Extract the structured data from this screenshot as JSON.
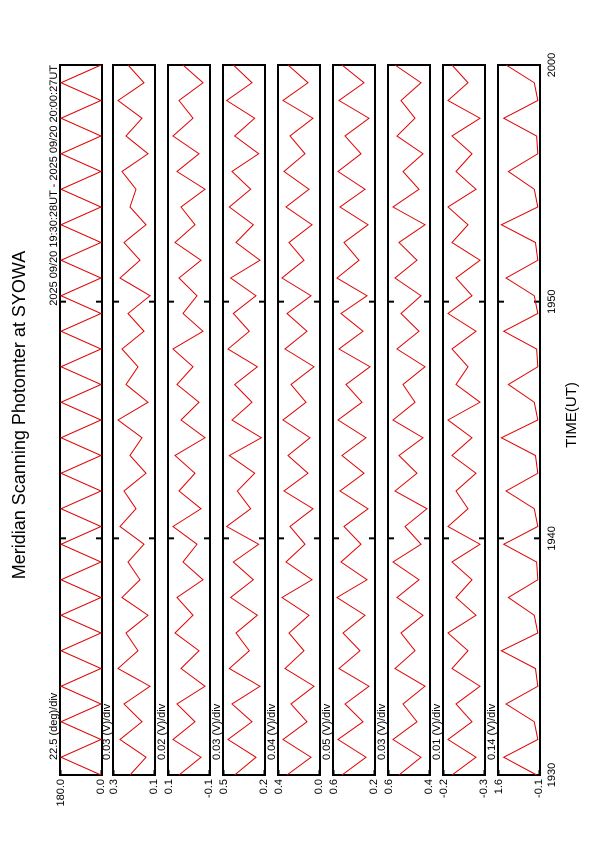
{
  "chart_data": {
    "type": "line",
    "title": "Meridian Scanning Photomter at SYOWA",
    "subtitle": "2025 09/20 19:30:28UT - 2025 09/20 20:00:27UT",
    "xlabel": "TIME(UT)",
    "xlim": [
      1170,
      1200
    ],
    "xticks": [
      {
        "value": 1170,
        "label": "1930"
      },
      {
        "value": 1180,
        "label": "1940"
      },
      {
        "value": 1190,
        "label": "1950"
      },
      {
        "value": 1200,
        "label": "2000"
      }
    ],
    "x": [
      1170,
      1170.75,
      1171.5,
      1172.25,
      1173,
      1173.75,
      1174.5,
      1175.25,
      1176,
      1176.75,
      1177.5,
      1178.25,
      1179,
      1179.75,
      1180.5,
      1181.25,
      1182,
      1182.75,
      1183.5,
      1184.25,
      1185,
      1185.75,
      1186.5,
      1187.25,
      1188,
      1188.75,
      1189.5,
      1190.25,
      1191,
      1191.75,
      1192.5,
      1193.25,
      1194,
      1194.75,
      1195.5,
      1196.25,
      1197,
      1197.75,
      1198.5,
      1199.25,
      1200
    ],
    "series": [
      {
        "scale_label": "22.5 (deg)/div",
        "color": "#e00000",
        "ylim": [
          0,
          180
        ],
        "yticks": [
          {
            "value": 0,
            "label": "0.0"
          },
          {
            "value": 180,
            "label": "180.0"
          }
        ],
        "values": [
          0,
          180,
          0,
          180,
          0,
          180,
          0,
          180,
          0,
          180,
          0,
          180,
          0,
          180,
          0,
          180,
          0,
          180,
          0,
          180,
          0,
          180,
          0,
          180,
          0,
          180,
          0,
          180,
          0,
          180,
          0,
          180,
          0,
          180,
          0,
          180,
          0,
          180,
          0,
          180,
          0
        ]
      },
      {
        "scale_label": "0.03 (V)/div",
        "color": "#e00000",
        "ylim": [
          0.1,
          0.3
        ],
        "yticks": [
          0.1,
          0.3
        ],
        "values": [
          0.22,
          0.14,
          0.27,
          0.16,
          0.25,
          0.12,
          0.28,
          0.18,
          0.24,
          0.13,
          0.26,
          0.17,
          0.23,
          0.15,
          0.27,
          0.19,
          0.25,
          0.14,
          0.22,
          0.16,
          0.28,
          0.13,
          0.24,
          0.18,
          0.26,
          0.15,
          0.23,
          0.12,
          0.27,
          0.17,
          0.25,
          0.14,
          0.22,
          0.19,
          0.26,
          0.13,
          0.24,
          0.16,
          0.28,
          0.15,
          0.23
        ]
      },
      {
        "scale_label": "0.02 (V)/div",
        "color": "#e00000",
        "ylim": [
          -0.1,
          0.1
        ],
        "yticks": [
          -0.1,
          0.1
        ],
        "values": [
          0.05,
          -0.06,
          0.08,
          -0.03,
          0.06,
          -0.08,
          0.04,
          -0.05,
          0.07,
          -0.02,
          0.06,
          -0.07,
          0.03,
          -0.04,
          0.08,
          -0.06,
          0.05,
          -0.03,
          0.07,
          -0.08,
          0.04,
          -0.05,
          0.06,
          -0.02,
          0.08,
          -0.07,
          0.03,
          -0.04,
          0.05,
          -0.06,
          0.07,
          -0.03,
          0.04,
          -0.08,
          0.06,
          -0.05,
          0.08,
          -0.02,
          0.05,
          -0.07,
          0.03
        ]
      },
      {
        "scale_label": "0.03 (V)/div",
        "color": "#e00000",
        "ylim": [
          0.2,
          0.5
        ],
        "yticks": [
          0.2,
          0.5
        ],
        "values": [
          0.42,
          0.26,
          0.47,
          0.29,
          0.44,
          0.23,
          0.46,
          0.31,
          0.41,
          0.25,
          0.45,
          0.28,
          0.43,
          0.24,
          0.48,
          0.3,
          0.4,
          0.27,
          0.46,
          0.22,
          0.44,
          0.29,
          0.42,
          0.25,
          0.47,
          0.31,
          0.43,
          0.26,
          0.45,
          0.23,
          0.41,
          0.28,
          0.46,
          0.3,
          0.44,
          0.24,
          0.42,
          0.27,
          0.48,
          0.29,
          0.43
        ]
      },
      {
        "scale_label": "0.04 (V)/div",
        "color": "#e00000",
        "ylim": [
          0,
          0.4
        ],
        "yticks": [
          {
            "value": 0,
            "label": "0.0"
          },
          0.4
        ],
        "values": [
          0.32,
          0.08,
          0.36,
          0.12,
          0.28,
          0.05,
          0.34,
          0.15,
          0.3,
          0.1,
          0.37,
          0.07,
          0.33,
          0.14,
          0.29,
          0.06,
          0.35,
          0.11,
          0.31,
          0.09,
          0.36,
          0.13,
          0.28,
          0.05,
          0.34,
          0.12,
          0.32,
          0.08,
          0.37,
          0.15,
          0.3,
          0.07,
          0.33,
          0.1,
          0.35,
          0.14,
          0.29,
          0.06,
          0.36,
          0.11,
          0.31
        ]
      },
      {
        "scale_label": "0.05 (V)/div",
        "color": "#e00000",
        "ylim": [
          0.2,
          0.6
        ],
        "yticks": [
          0.2,
          0.6
        ],
        "values": [
          0.52,
          0.28,
          0.56,
          0.31,
          0.49,
          0.25,
          0.55,
          0.34,
          0.51,
          0.29,
          0.57,
          0.27,
          0.53,
          0.33,
          0.5,
          0.26,
          0.54,
          0.3,
          0.52,
          0.28,
          0.56,
          0.32,
          0.48,
          0.24,
          0.55,
          0.31,
          0.53,
          0.27,
          0.57,
          0.35,
          0.5,
          0.26,
          0.54,
          0.29,
          0.56,
          0.33,
          0.49,
          0.25,
          0.55,
          0.3,
          0.52
        ]
      },
      {
        "scale_label": "0.03 (V)/div",
        "color": "#e00000",
        "ylim": [
          0.4,
          0.6
        ],
        "yticks": [
          0.4,
          0.6
        ],
        "values": [
          0.55,
          0.44,
          0.58,
          0.46,
          0.53,
          0.42,
          0.57,
          0.47,
          0.54,
          0.43,
          0.56,
          0.45,
          0.58,
          0.44,
          0.52,
          0.41,
          0.57,
          0.46,
          0.55,
          0.43,
          0.58,
          0.47,
          0.53,
          0.42,
          0.56,
          0.45,
          0.54,
          0.44,
          0.57,
          0.46,
          0.55,
          0.42,
          0.58,
          0.45,
          0.53,
          0.43,
          0.56,
          0.47,
          0.54,
          0.44,
          0.57
        ]
      },
      {
        "scale_label": "0.01 (V)/div",
        "color": "#e00000",
        "ylim": [
          -0.3,
          -0.2
        ],
        "yticks": [
          -0.3,
          -0.2
        ],
        "values": [
          -0.22,
          -0.28,
          -0.21,
          -0.27,
          -0.23,
          -0.29,
          -0.22,
          -0.26,
          -0.21,
          -0.28,
          -0.23,
          -0.27,
          -0.22,
          -0.29,
          -0.21,
          -0.26,
          -0.23,
          -0.28,
          -0.22,
          -0.27,
          -0.21,
          -0.29,
          -0.23,
          -0.26,
          -0.22,
          -0.28,
          -0.21,
          -0.27,
          -0.23,
          -0.29,
          -0.22,
          -0.26,
          -0.21,
          -0.28,
          -0.23,
          -0.27,
          -0.22,
          -0.29,
          -0.21,
          -0.26,
          -0.22
        ]
      },
      {
        "scale_label": "0.14 (V)/div",
        "color": "#e00000",
        "ylim": [
          -0.1,
          1.6
        ],
        "yticks": [
          -0.1,
          1.6
        ],
        "values": [
          0.0,
          1.4,
          -0.05,
          0.1,
          1.3,
          -0.05,
          0.05,
          1.5,
          -0.05,
          0.1,
          1.2,
          -0.05,
          0.0,
          1.4,
          -0.05,
          0.1,
          1.3,
          -0.05,
          0.05,
          1.5,
          -0.05,
          0.1,
          1.2,
          -0.05,
          0.0,
          1.4,
          -0.05,
          0.1,
          1.3,
          -0.05,
          0.05,
          1.5,
          -0.05,
          0.1,
          1.2,
          -0.05,
          0.0,
          1.4,
          -0.05,
          0.1,
          1.3
        ]
      }
    ]
  }
}
